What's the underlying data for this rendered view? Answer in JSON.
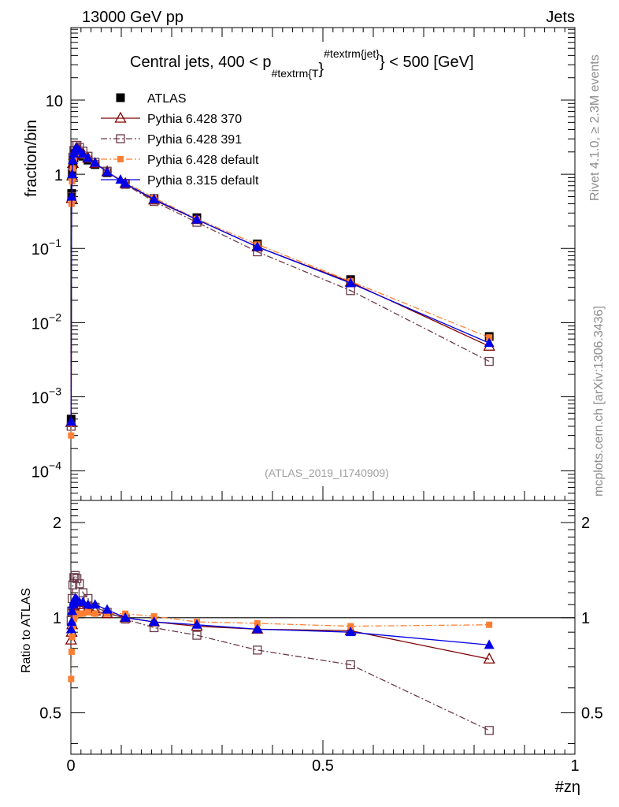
{
  "header": {
    "left": "13000 GeV pp",
    "right": "Jets"
  },
  "side_texts": {
    "rivet": "Rivet 4.1.0, ≥ 2.3M events",
    "mcplots": "mcplots.cern.ch [arXiv:1306.3436]"
  },
  "watermark": "(ATLAS_2019_I1740909)",
  "colors": {
    "atlas": "#000000",
    "py370": "#7f0000",
    "py391": "#6b3a4a",
    "py6def": "#ff7f32",
    "py8def": "#0000e6"
  },
  "chart_data": [
    {
      "type": "scatter",
      "title": "Central jets, 400 < p_{#textrm{T}}^{#textrm{jet}} < 500 [GeV]",
      "title_parts": {
        "pre": "Central jets, 400 < p",
        "sub": "#textrm{T",
        "brace": "}",
        "sup": "#textrm{jet}",
        "post": "} < 500 [GeV]"
      },
      "xlabel": "",
      "ylabel": "fraction/bin",
      "xlim": [
        0,
        1
      ],
      "ylim": [
        4e-05,
        95
      ],
      "yscale": "log",
      "y_tick_labels": [
        {
          "value": 0.0001,
          "base": "10",
          "exp": "−4"
        },
        {
          "value": 0.001,
          "base": "10",
          "exp": "−3"
        },
        {
          "value": 0.01,
          "base": "10",
          "exp": "−2"
        },
        {
          "value": 0.1,
          "base": "10",
          "exp": "−1"
        },
        {
          "value": 1,
          "base": "1",
          "exp": ""
        },
        {
          "value": 10,
          "base": "10",
          "exp": ""
        }
      ],
      "legend_position": "top-left",
      "x": [
        0.0005,
        0.0015,
        0.0025,
        0.004,
        0.006,
        0.0085,
        0.012,
        0.017,
        0.024,
        0.034,
        0.048,
        0.072,
        0.108,
        0.165,
        0.25,
        0.37,
        0.555,
        0.83
      ],
      "series": [
        {
          "name": "ATLAS",
          "key": "atlas",
          "marker": "filled-square",
          "line": "none",
          "values": [
            0.0005,
            0.55,
            1.0,
            1.35,
            1.65,
            1.9,
            2.0,
            1.9,
            1.75,
            1.55,
            1.35,
            1.05,
            0.75,
            0.47,
            0.26,
            0.115,
            0.038,
            0.0065
          ]
        },
        {
          "name": "Pythia 6.428 370",
          "key": "py370",
          "marker": "open-triangle",
          "line": "solid",
          "values": [
            0.00045,
            0.47,
            0.95,
            1.4,
            1.8,
            2.1,
            2.25,
            2.1,
            1.9,
            1.65,
            1.4,
            1.08,
            0.75,
            0.45,
            0.245,
            0.105,
            0.035,
            0.0048
          ]
        },
        {
          "name": "Pythia 6.428 391",
          "key": "py391",
          "marker": "open-square",
          "line": "dashdot",
          "values": [
            0.0004,
            0.5,
            1.05,
            1.7,
            2.1,
            2.45,
            2.45,
            2.3,
            2.05,
            1.75,
            1.45,
            1.1,
            0.73,
            0.43,
            0.225,
            0.09,
            0.027,
            0.003
          ]
        },
        {
          "name": "Pythia 6.428 default",
          "key": "py6def",
          "marker": "filled-square-small",
          "line": "dashdot",
          "values": [
            0.0003,
            0.4,
            0.8,
            1.2,
            1.55,
            1.85,
            2.0,
            1.9,
            1.8,
            1.6,
            1.38,
            1.08,
            0.78,
            0.48,
            0.25,
            0.113,
            0.036,
            0.0063
          ]
        },
        {
          "name": "Pythia 8.315 default",
          "key": "py8def",
          "marker": "filled-triangle",
          "line": "solid",
          "values": [
            0.00046,
            0.5,
            1.0,
            1.55,
            1.9,
            2.15,
            2.25,
            2.05,
            1.88,
            1.65,
            1.42,
            1.07,
            0.75,
            0.46,
            0.245,
            0.105,
            0.034,
            0.0053
          ]
        }
      ]
    },
    {
      "type": "scatter",
      "title": "",
      "xlabel": "#zη",
      "ylabel": "Ratio to ATLAS",
      "xlim": [
        0,
        1
      ],
      "ylim": [
        0.37,
        2.35
      ],
      "yscale": "log",
      "y_ticks": [
        0.5,
        1,
        2
      ],
      "y_tick_labels": [
        "0.5",
        "1",
        "2"
      ],
      "x_ticks": [
        0,
        0.5,
        1
      ],
      "x_tick_labels": [
        "0",
        "0.5",
        "1"
      ],
      "reference_line": 1,
      "x": [
        0.0005,
        0.0015,
        0.0025,
        0.004,
        0.006,
        0.0085,
        0.012,
        0.017,
        0.024,
        0.034,
        0.048,
        0.072,
        0.108,
        0.165,
        0.25,
        0.37,
        0.555,
        0.83
      ],
      "series": [
        {
          "name": "Pythia 6.428 370",
          "key": "py370",
          "marker": "open-triangle",
          "line": "solid",
          "values": [
            0.85,
            0.9,
            0.95,
            1.04,
            1.09,
            1.12,
            1.12,
            1.1,
            1.08,
            1.07,
            1.05,
            1.03,
            1.0,
            0.97,
            0.94,
            0.92,
            0.91,
            0.74
          ]
        },
        {
          "name": "Pythia 6.428 391",
          "key": "py391",
          "marker": "open-square",
          "line": "dashdot",
          "values": [
            0.98,
            1.05,
            1.15,
            1.27,
            1.34,
            1.36,
            1.33,
            1.28,
            1.2,
            1.15,
            1.08,
            1.04,
            0.99,
            0.93,
            0.88,
            0.79,
            0.71,
            0.44
          ]
        },
        {
          "name": "Pythia 6.428 default",
          "key": "py6def",
          "marker": "filled-square-small",
          "line": "dashdot",
          "values": [
            0.64,
            0.78,
            0.87,
            0.94,
            0.99,
            1.01,
            1.03,
            1.03,
            1.03,
            1.04,
            1.03,
            1.03,
            1.03,
            1.01,
            0.97,
            0.96,
            0.94,
            0.95
          ]
        },
        {
          "name": "Pythia 8.315 default",
          "key": "py8def",
          "marker": "filled-triangle",
          "line": "solid",
          "values": [
            0.92,
            0.97,
            1.05,
            1.1,
            1.13,
            1.15,
            1.14,
            1.12,
            1.12,
            1.1,
            1.1,
            1.06,
            1.0,
            0.97,
            0.95,
            0.92,
            0.9,
            0.82
          ]
        }
      ]
    }
  ]
}
